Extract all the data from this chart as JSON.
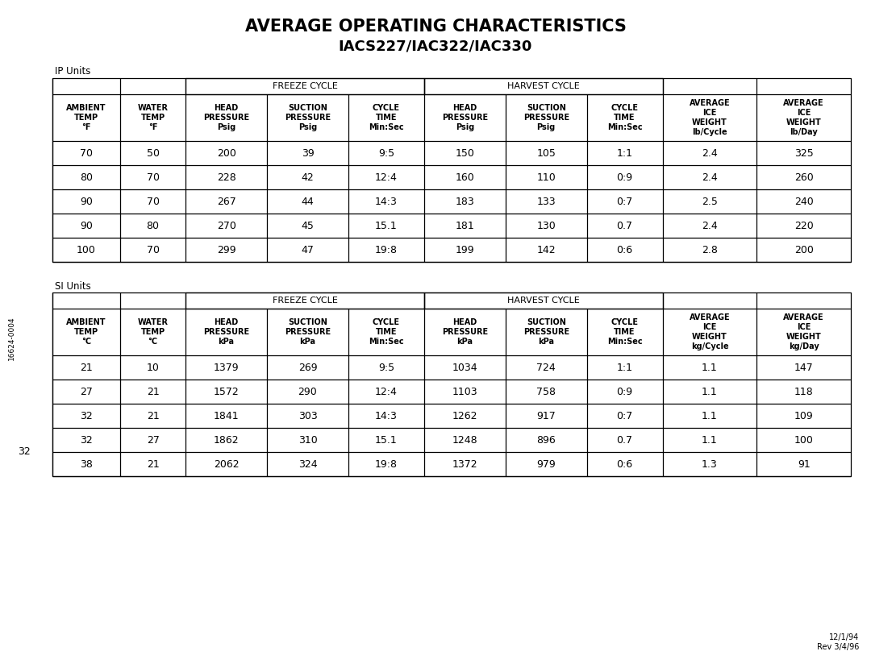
{
  "title_line1": "AVERAGE OPERATING CHARACTERISTICS",
  "title_line2": "IACS227/IAC322/IAC330",
  "left_label": "16624-0004",
  "bottom_left_label": "32",
  "bottom_right_label": "12/1/94\nRev 3/4/96",
  "ip_section_label": "IP Units",
  "si_section_label": "SI Units",
  "freeze_cycle_label": "FREEZE CYCLE",
  "harvest_cycle_label": "HARVEST CYCLE",
  "ip_col_headers": [
    "AMBIENT\nTEMP\n°F",
    "WATER\nTEMP\n°F",
    "HEAD\nPRESSURE\nPsig",
    "SUCTION\nPRESSURE\nPsig",
    "CYCLE\nTIME\nMin:Sec",
    "HEAD\nPRESSURE\nPsig",
    "SUCTION\nPRESSURE\nPsig",
    "CYCLE\nTIME\nMin:Sec",
    "AVERAGE\nICE\nWEIGHT\nlb/Cycle",
    "AVERAGE\nICE\nWEIGHT\nlb/Day"
  ],
  "ip_data": [
    [
      "70",
      "50",
      "200",
      "39",
      "9:5",
      "150",
      "105",
      "1:1",
      "2.4",
      "325"
    ],
    [
      "80",
      "70",
      "228",
      "42",
      "12:4",
      "160",
      "110",
      "0:9",
      "2.4",
      "260"
    ],
    [
      "90",
      "70",
      "267",
      "44",
      "14:3",
      "183",
      "133",
      "0:7",
      "2.5",
      "240"
    ],
    [
      "90",
      "80",
      "270",
      "45",
      "15.1",
      "181",
      "130",
      "0.7",
      "2.4",
      "220"
    ],
    [
      "100",
      "70",
      "299",
      "47",
      "19:8",
      "199",
      "142",
      "0:6",
      "2.8",
      "200"
    ]
  ],
  "si_col_headers": [
    "AMBIENT\nTEMP\n°C",
    "WATER\nTEMP\n°C",
    "HEAD\nPRESSURE\nkPa",
    "SUCTION\nPRESSURE\nkPa",
    "CYCLE\nTIME\nMin:Sec",
    "HEAD\nPRESSURE\nkPa",
    "SUCTION\nPRESSURE\nkPa",
    "CYCLE\nTIME\nMin:Sec",
    "AVERAGE\nICE\nWEIGHT\nkg/Cycle",
    "AVERAGE\nICE\nWEIGHT\nkg/Day"
  ],
  "si_data": [
    [
      "21",
      "10",
      "1379",
      "269",
      "9:5",
      "1034",
      "724",
      "1:1",
      "1.1",
      "147"
    ],
    [
      "27",
      "21",
      "1572",
      "290",
      "12:4",
      "1103",
      "758",
      "0:9",
      "1.1",
      "118"
    ],
    [
      "32",
      "21",
      "1841",
      "303",
      "14:3",
      "1262",
      "917",
      "0:7",
      "1.1",
      "109"
    ],
    [
      "32",
      "27",
      "1862",
      "310",
      "15.1",
      "1248",
      "896",
      "0.7",
      "1.1",
      "100"
    ],
    [
      "38",
      "21",
      "2062",
      "324",
      "19:8",
      "1372",
      "979",
      "0:6",
      "1.3",
      "91"
    ]
  ],
  "bg_color": "#ffffff",
  "text_color": "#000000",
  "border_color": "#000000",
  "col_props": [
    0.085,
    0.082,
    0.102,
    0.102,
    0.095,
    0.102,
    0.102,
    0.095,
    0.118,
    0.118
  ]
}
